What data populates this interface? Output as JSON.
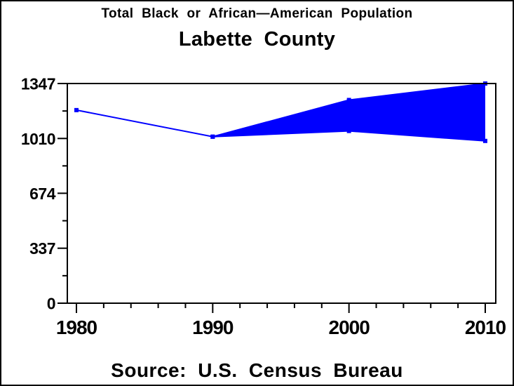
{
  "window": {
    "background_color": "#ffffff",
    "border_color": "#000000"
  },
  "header": {
    "title": "Total Black or African—American Population",
    "subtitle": "Labette County"
  },
  "footer": {
    "source_note": "Source: U.S. Census Bureau"
  },
  "chart_data": {
    "type": "area",
    "title": "Total Black or African—American Population",
    "subtitle": "Labette County",
    "footnote": "Source: U.S. Census Bureau",
    "xlabel": "",
    "ylabel": "",
    "grid": false,
    "legend": "none",
    "xlim": [
      1980,
      2010
    ],
    "ylim": [
      0,
      1347
    ],
    "xticks": [
      1980,
      1990,
      2000,
      2010
    ],
    "xtick_labels": [
      "1980",
      "1990",
      "2000",
      "2010"
    ],
    "xticks_minor": [
      1982,
      1984,
      1986,
      1988,
      1992,
      1994,
      1996,
      1998,
      2002,
      2004,
      2006,
      2008
    ],
    "yticks": [
      0,
      337,
      674,
      1010,
      1347
    ],
    "ytick_labels": [
      "0",
      "337",
      "674",
      "1010",
      "1347"
    ],
    "yticks_minor": [
      168.5,
      505.5,
      842,
      1178.5
    ],
    "color": "#0000ff",
    "fill_between_series": true,
    "fill_color": "#0000ff",
    "marker": "square",
    "series": [
      {
        "name": "population-lower-line",
        "role": "lower",
        "x": [
          1980,
          1990,
          2000,
          2010
        ],
        "values": [
          1184,
          1021,
          1056,
          995
        ]
      },
      {
        "name": "population-upper-line",
        "role": "upper",
        "x": [
          1990,
          2000,
          2010
        ],
        "values": [
          1021,
          1246,
          1347
        ]
      }
    ]
  }
}
